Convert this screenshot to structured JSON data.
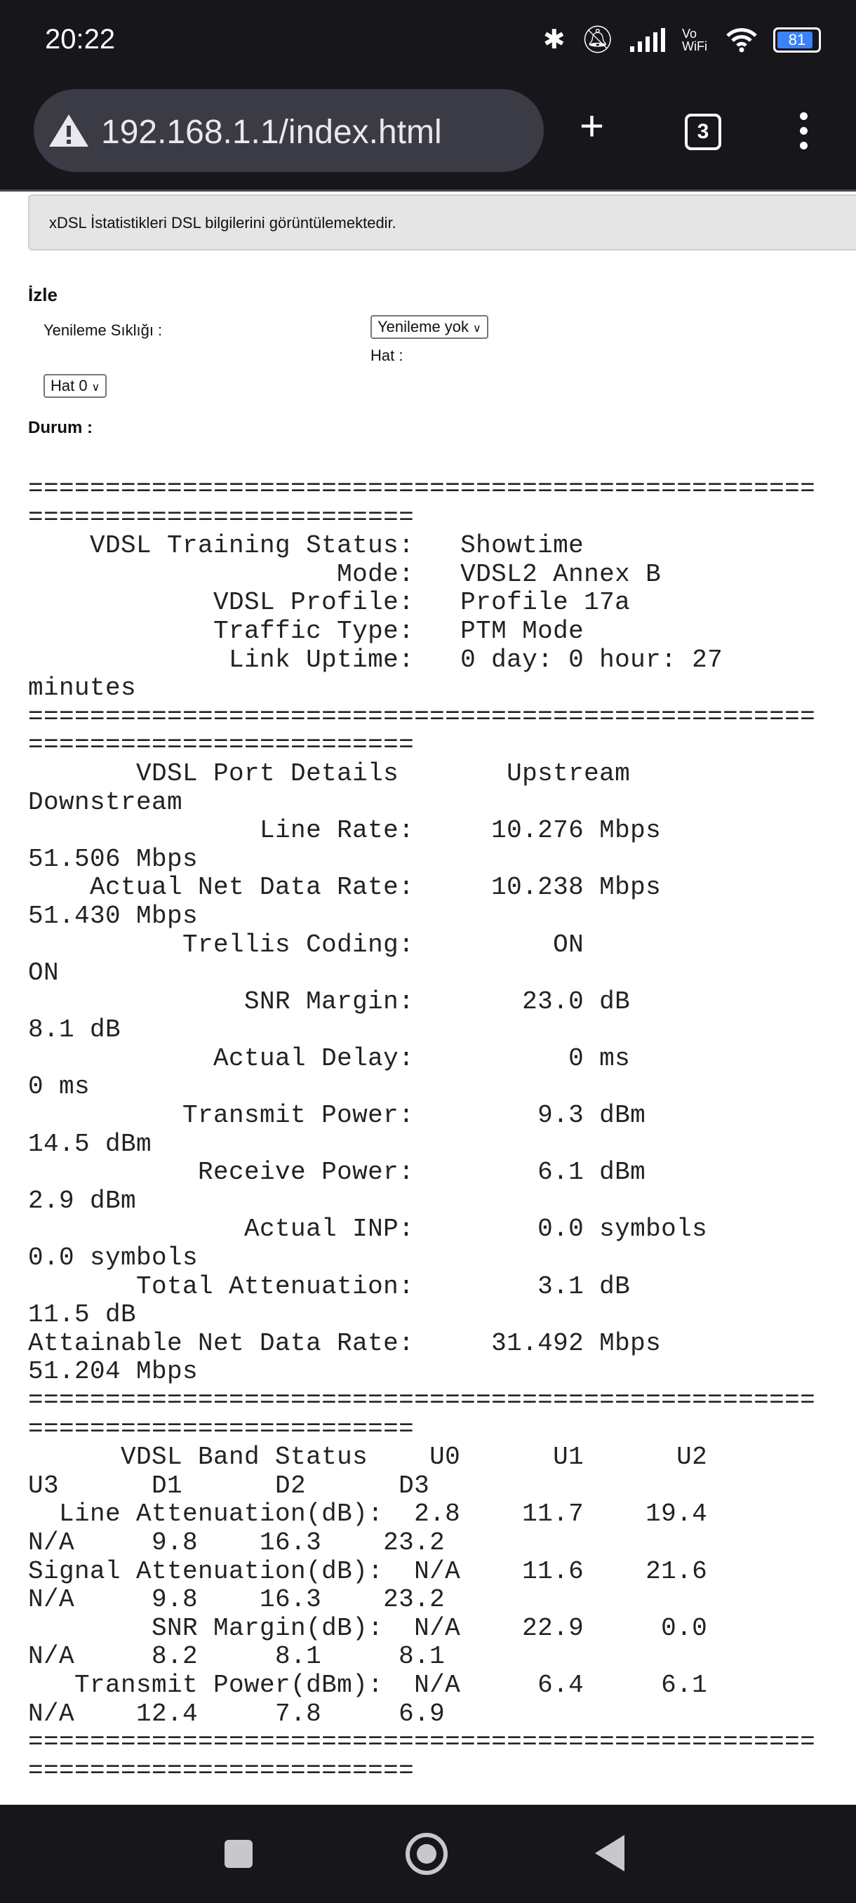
{
  "status_bar": {
    "time": "20:22",
    "icons": [
      "bluetooth-icon",
      "bell-off-icon",
      "signal-icon",
      "vowifi-icon",
      "wifi-icon",
      "battery-icon"
    ],
    "vowifi": "Vo WiFi",
    "battery_level": "81",
    "battery_color": "#3b82f6"
  },
  "browser": {
    "url": "192.168.1.1/index.html",
    "tab_count": "3",
    "new_tab": "+"
  },
  "page": {
    "info": "xDSL İstatistikleri DSL bilgilerini görüntülemektedir.",
    "section_title": "İzle",
    "refresh_label": "Yenileme Sıklığı :",
    "refresh_value": "Yenileme yok",
    "line_label": "Hat :",
    "line_value": "Hat 0",
    "status_label": "Durum :",
    "stats_lines": [
      "===================================================",
      "=========================",
      "    VDSL Training Status:   Showtime",
      "                    Mode:   VDSL2 Annex B",
      "            VDSL Profile:   Profile 17a",
      "            Traffic Type:   PTM Mode",
      "             Link Uptime:   0 day: 0 hour: 27",
      "minutes",
      "===================================================",
      "=========================",
      "       VDSL Port Details       Upstream",
      "Downstream",
      "               Line Rate:     10.276 Mbps",
      "51.506 Mbps",
      "    Actual Net Data Rate:     10.238 Mbps",
      "51.430 Mbps",
      "          Trellis Coding:         ON",
      "ON",
      "              SNR Margin:       23.0 dB",
      "8.1 dB",
      "            Actual Delay:          0 ms",
      "0 ms",
      "          Transmit Power:        9.3 dBm",
      "14.5 dBm",
      "           Receive Power:        6.1 dBm",
      "2.9 dBm",
      "              Actual INP:        0.0 symbols",
      "0.0 symbols",
      "       Total Attenuation:        3.1 dB",
      "11.5 dB",
      "Attainable Net Data Rate:     31.492 Mbps",
      "51.204 Mbps",
      "===================================================",
      "=========================",
      "      VDSL Band Status    U0      U1      U2",
      "U3      D1      D2      D3",
      "  Line Attenuation(dB):  2.8    11.7    19.4",
      "N/A     9.8    16.3    23.2",
      "Signal Attenuation(dB):  N/A    11.6    21.6",
      "N/A     9.8    16.3    23.2",
      "        SNR Margin(dB):  N/A    22.9     0.0",
      "N/A     8.2     8.1     8.1",
      "   Transmit Power(dBm):  N/A     6.4     6.1",
      "N/A    12.4     7.8     6.9",
      "===================================================",
      "========================="
    ]
  },
  "nav_bar": {
    "buttons": [
      "recents-button",
      "home-button",
      "back-button"
    ]
  }
}
